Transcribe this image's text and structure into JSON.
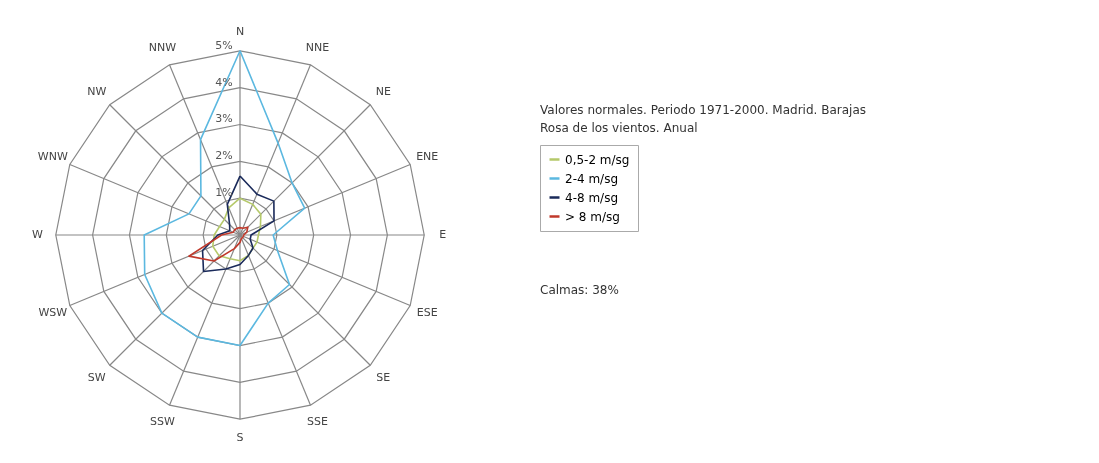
{
  "chart_data": {
    "type": "radar",
    "title": "Valores normales. Periodo 1971-2000. Madrid. Barajas",
    "subtitle": "Rosa de los vientos. Anual",
    "categories": [
      "N",
      "NNE",
      "NE",
      "ENE",
      "E",
      "ESE",
      "SE",
      "SSE",
      "S",
      "SSW",
      "SW",
      "WSW",
      "W",
      "WNW",
      "NW",
      "NNW"
    ],
    "series": [
      {
        "name": "0,5-2 m/sg",
        "color": "#b5c96a",
        "values": [
          1.0,
          0.9,
          0.8,
          0.6,
          0.5,
          0.5,
          0.5,
          0.6,
          0.7,
          0.7,
          0.8,
          0.8,
          0.7,
          0.6,
          0.6,
          0.8
        ]
      },
      {
        "name": "2-4 m/sg",
        "color": "#5bb8e0",
        "values": [
          5.0,
          2.7,
          2.0,
          1.9,
          0.9,
          1.1,
          1.9,
          2.0,
          3.0,
          3.0,
          3.0,
          2.8,
          2.6,
          1.5,
          1.5,
          2.8
        ]
      },
      {
        "name": "4-8 m/sg",
        "color": "#1a2a5a",
        "values": [
          1.6,
          1.2,
          1.3,
          1.0,
          0.3,
          0.3,
          0.5,
          0.6,
          0.8,
          1.0,
          1.4,
          1.1,
          0.6,
          0.3,
          0.4,
          0.9
        ]
      },
      {
        "name": "> 8 m/sg",
        "color": "#c0392b",
        "values": [
          0.2,
          0.2,
          0.3,
          0.2,
          0.1,
          0.1,
          0.1,
          0.1,
          0.2,
          0.4,
          1.0,
          1.5,
          0.5,
          0.2,
          0.2,
          0.2
        ]
      }
    ],
    "ylim": [
      0,
      5
    ],
    "yticks": [
      {
        "value": 1,
        "label": "1%"
      },
      {
        "value": 2,
        "label": "2%"
      },
      {
        "value": 3,
        "label": "3%"
      },
      {
        "value": 4,
        "label": "4%"
      },
      {
        "value": 5,
        "label": "5%"
      }
    ],
    "annotations": [
      "Calmas: 38%"
    ],
    "grid": true,
    "legend": "right",
    "line_style": "solid"
  }
}
